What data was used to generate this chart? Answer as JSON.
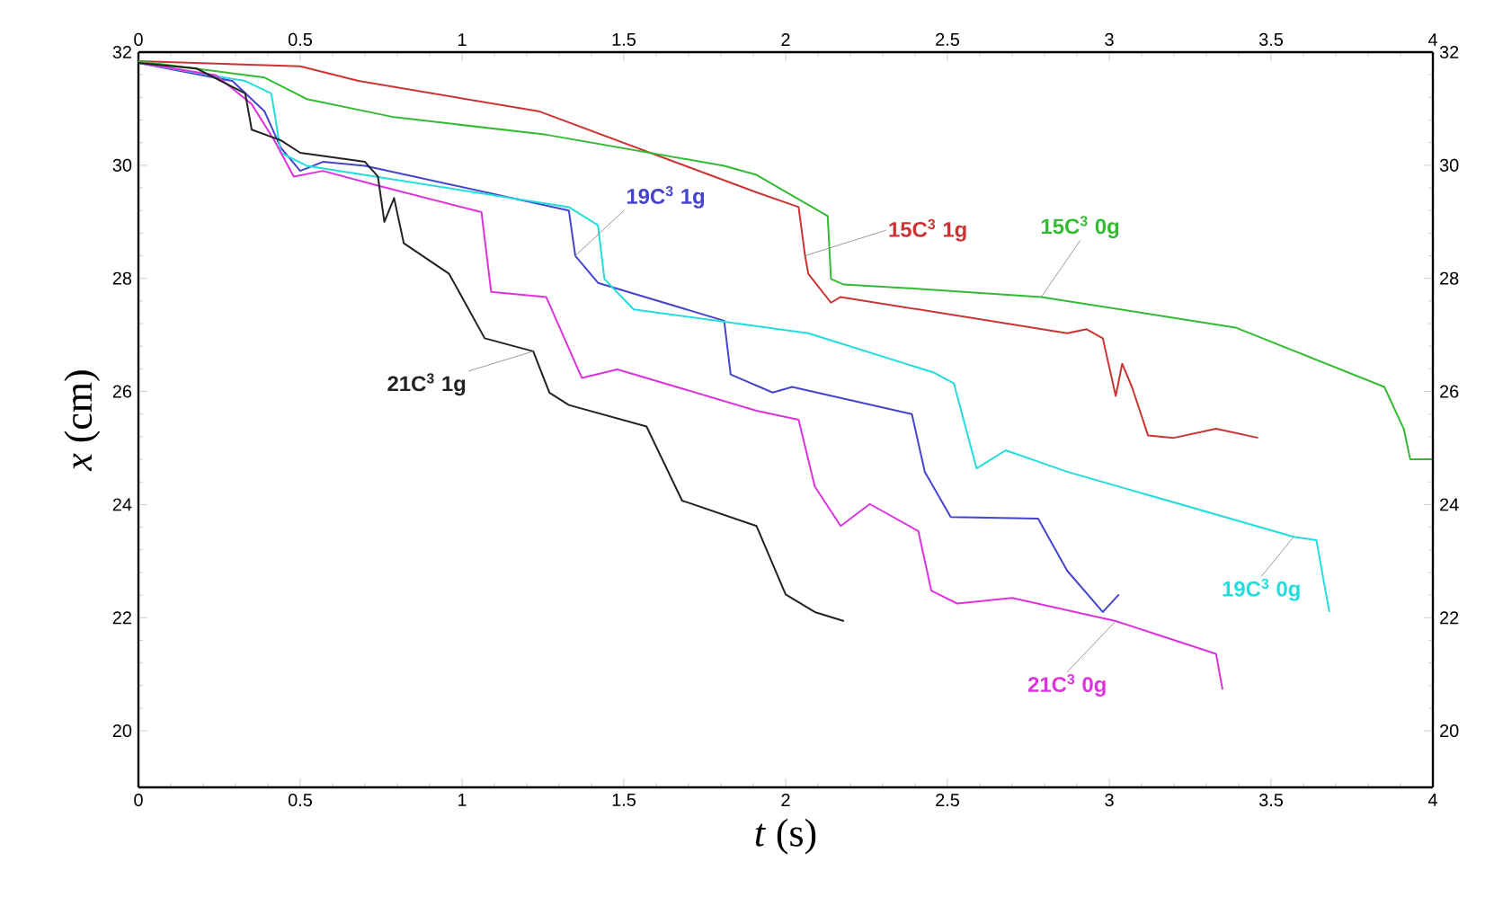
{
  "chart_data": {
    "type": "line",
    "xlabel": "*t* (s)",
    "ylabel": "*x* (cm)",
    "xlim": [
      0,
      4
    ],
    "xticks": [
      0,
      0.5,
      1,
      1.5,
      2,
      2.5,
      3,
      3.5,
      4
    ],
    "x2lim": [
      0,
      4
    ],
    "x2ticks": [
      0,
      0.5,
      1,
      1.5,
      2,
      2.5,
      3,
      3.5,
      4
    ],
    "ylim": [
      19,
      32
    ],
    "yticks": [
      20,
      22,
      24,
      26,
      28,
      30,
      32
    ],
    "y2lim": [
      19,
      32
    ],
    "y2ticks": [
      20,
      22,
      24,
      26,
      28,
      30,
      32
    ],
    "series": [
      {
        "name": "15C$^{3}$ 1g",
        "color": "#cc3333",
        "x": [
          0,
          0.5,
          0.68,
          1.24,
          1.91,
          2.04,
          2.06,
          2.07,
          2.14,
          2.17,
          2.87,
          2.93,
          2.98,
          3.02,
          3.04,
          3.07,
          3.12,
          3.2,
          3.33,
          3.46
        ],
        "values": [
          31.84,
          31.75,
          31.49,
          30.95,
          29.52,
          29.26,
          28.4,
          28.08,
          27.57,
          27.67,
          27.03,
          27.1,
          26.94,
          25.92,
          26.49,
          26.08,
          25.22,
          25.18,
          25.34,
          25.18
        ]
      },
      {
        "name": "15C$^{3}$ 0g",
        "color": "#33bb33",
        "x": [
          0,
          0.39,
          0.52,
          0.79,
          1.26,
          1.81,
          1.91,
          2.13,
          2.14,
          2.18,
          2.37,
          2.79,
          3.39,
          3.85,
          3.91,
          3.93,
          4.0
        ],
        "values": [
          31.84,
          31.55,
          31.17,
          30.85,
          30.54,
          29.99,
          29.83,
          29.1,
          27.99,
          27.89,
          27.83,
          27.67,
          27.13,
          26.08,
          25.34,
          24.8,
          24.8
        ]
      },
      {
        "name": "19C$^{3}$ 1g",
        "color": "#4444cc",
        "x": [
          0,
          0.29,
          0.39,
          0.44,
          0.5,
          0.57,
          0.7,
          1.33,
          1.35,
          1.42,
          1.81,
          1.83,
          1.96,
          2.02,
          2.39,
          2.43,
          2.51,
          2.78,
          2.87,
          2.98,
          3.03
        ],
        "values": [
          31.81,
          31.49,
          30.95,
          30.31,
          29.9,
          30.06,
          29.99,
          29.2,
          28.4,
          27.92,
          27.25,
          26.3,
          25.98,
          26.08,
          25.6,
          24.58,
          23.78,
          23.75,
          22.83,
          22.1,
          22.41
        ]
      },
      {
        "name": "19C$^{3}$ 0g",
        "color": "#22dddd",
        "x": [
          0,
          0.33,
          0.41,
          0.42,
          0.44,
          0.52,
          1.33,
          1.42,
          1.44,
          1.53,
          2.07,
          2.46,
          2.52,
          2.59,
          2.68,
          2.87,
          3.57,
          3.64,
          3.68
        ],
        "values": [
          31.81,
          31.49,
          31.27,
          30.95,
          30.22,
          29.99,
          29.26,
          28.94,
          27.99,
          27.45,
          27.03,
          26.33,
          26.14,
          24.64,
          24.96,
          24.58,
          23.43,
          23.37,
          22.1
        ]
      },
      {
        "name": "21C$^{3}$ 0g",
        "color": "#dd33dd",
        "x": [
          0,
          0.24,
          0.35,
          0.42,
          0.48,
          0.57,
          0.74,
          1.06,
          1.09,
          1.26,
          1.37,
          1.48,
          1.91,
          2.04,
          2.09,
          2.17,
          2.26,
          2.41,
          2.45,
          2.53,
          2.7,
          3.02,
          3.33,
          3.35
        ],
        "values": [
          31.81,
          31.59,
          31.08,
          30.44,
          29.8,
          29.9,
          29.64,
          29.17,
          27.76,
          27.67,
          26.24,
          26.39,
          25.66,
          25.5,
          24.32,
          23.62,
          24.01,
          23.53,
          22.48,
          22.25,
          22.35,
          21.94,
          21.36,
          20.73
        ]
      },
      {
        "name": "21C$^{3}$ 1g",
        "color": "#222222",
        "x": [
          0,
          0.18,
          0.33,
          0.35,
          0.44,
          0.5,
          0.7,
          0.74,
          0.76,
          0.79,
          0.82,
          0.96,
          1.07,
          1.22,
          1.27,
          1.33,
          1.57,
          1.68,
          1.91,
          2.0,
          2.09,
          2.18
        ],
        "values": [
          31.81,
          31.71,
          31.27,
          30.63,
          30.44,
          30.22,
          30.06,
          29.8,
          29.0,
          29.42,
          28.62,
          28.08,
          26.94,
          26.71,
          25.98,
          25.76,
          25.38,
          24.07,
          23.62,
          22.41,
          22.1,
          21.94
        ]
      }
    ]
  }
}
